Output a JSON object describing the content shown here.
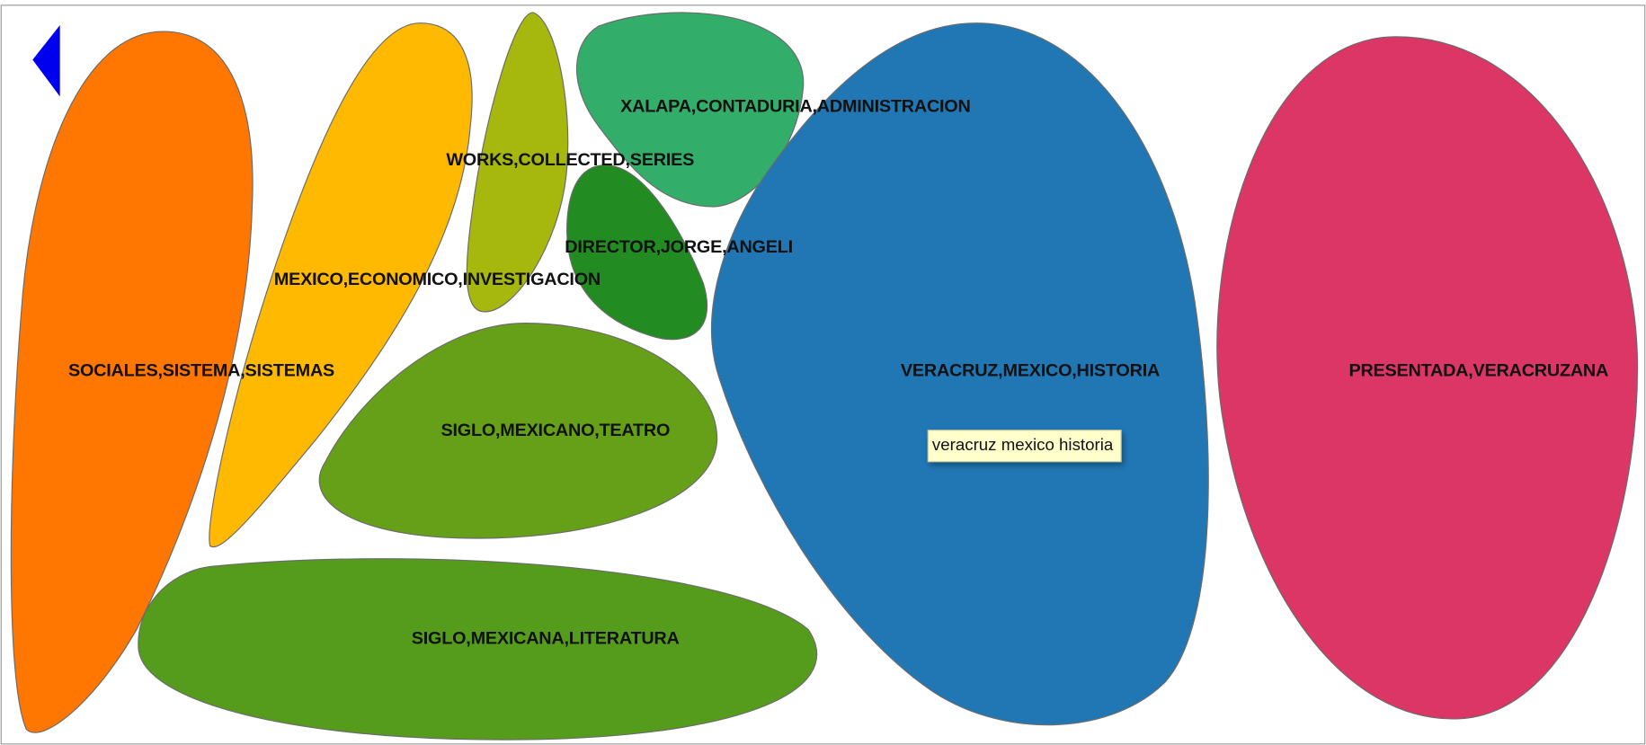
{
  "cells": [
    {
      "label": "SOCIALES,SISTEMA,SISTEMAS",
      "color": "#ff7700"
    },
    {
      "label": "MEXICO,ECONOMICO,INVESTIGACION",
      "color": "#ffb900"
    },
    {
      "label": "WORKS,COLLECTED,SERIES",
      "color": "#a6b70e"
    },
    {
      "label": "XALAPA,CONTADURIA,ADMINISTRACION",
      "color": "#33ad6a"
    },
    {
      "label": "DIRECTOR,JORGE,ANGELI",
      "color": "#228b22"
    },
    {
      "label": "SIGLO,MEXICANO,TEATRO",
      "color": "#66a018"
    },
    {
      "label": "SIGLO,MEXICANA,LITERATURA",
      "color": "#569c1c"
    },
    {
      "label": "VERACRUZ,MEXICO,HISTORIA",
      "color": "#2077b4"
    },
    {
      "label": "PRESENTADA,VERACRUZANA",
      "color": "#db3665"
    }
  ],
  "tooltip": "veracruz mexico historia"
}
